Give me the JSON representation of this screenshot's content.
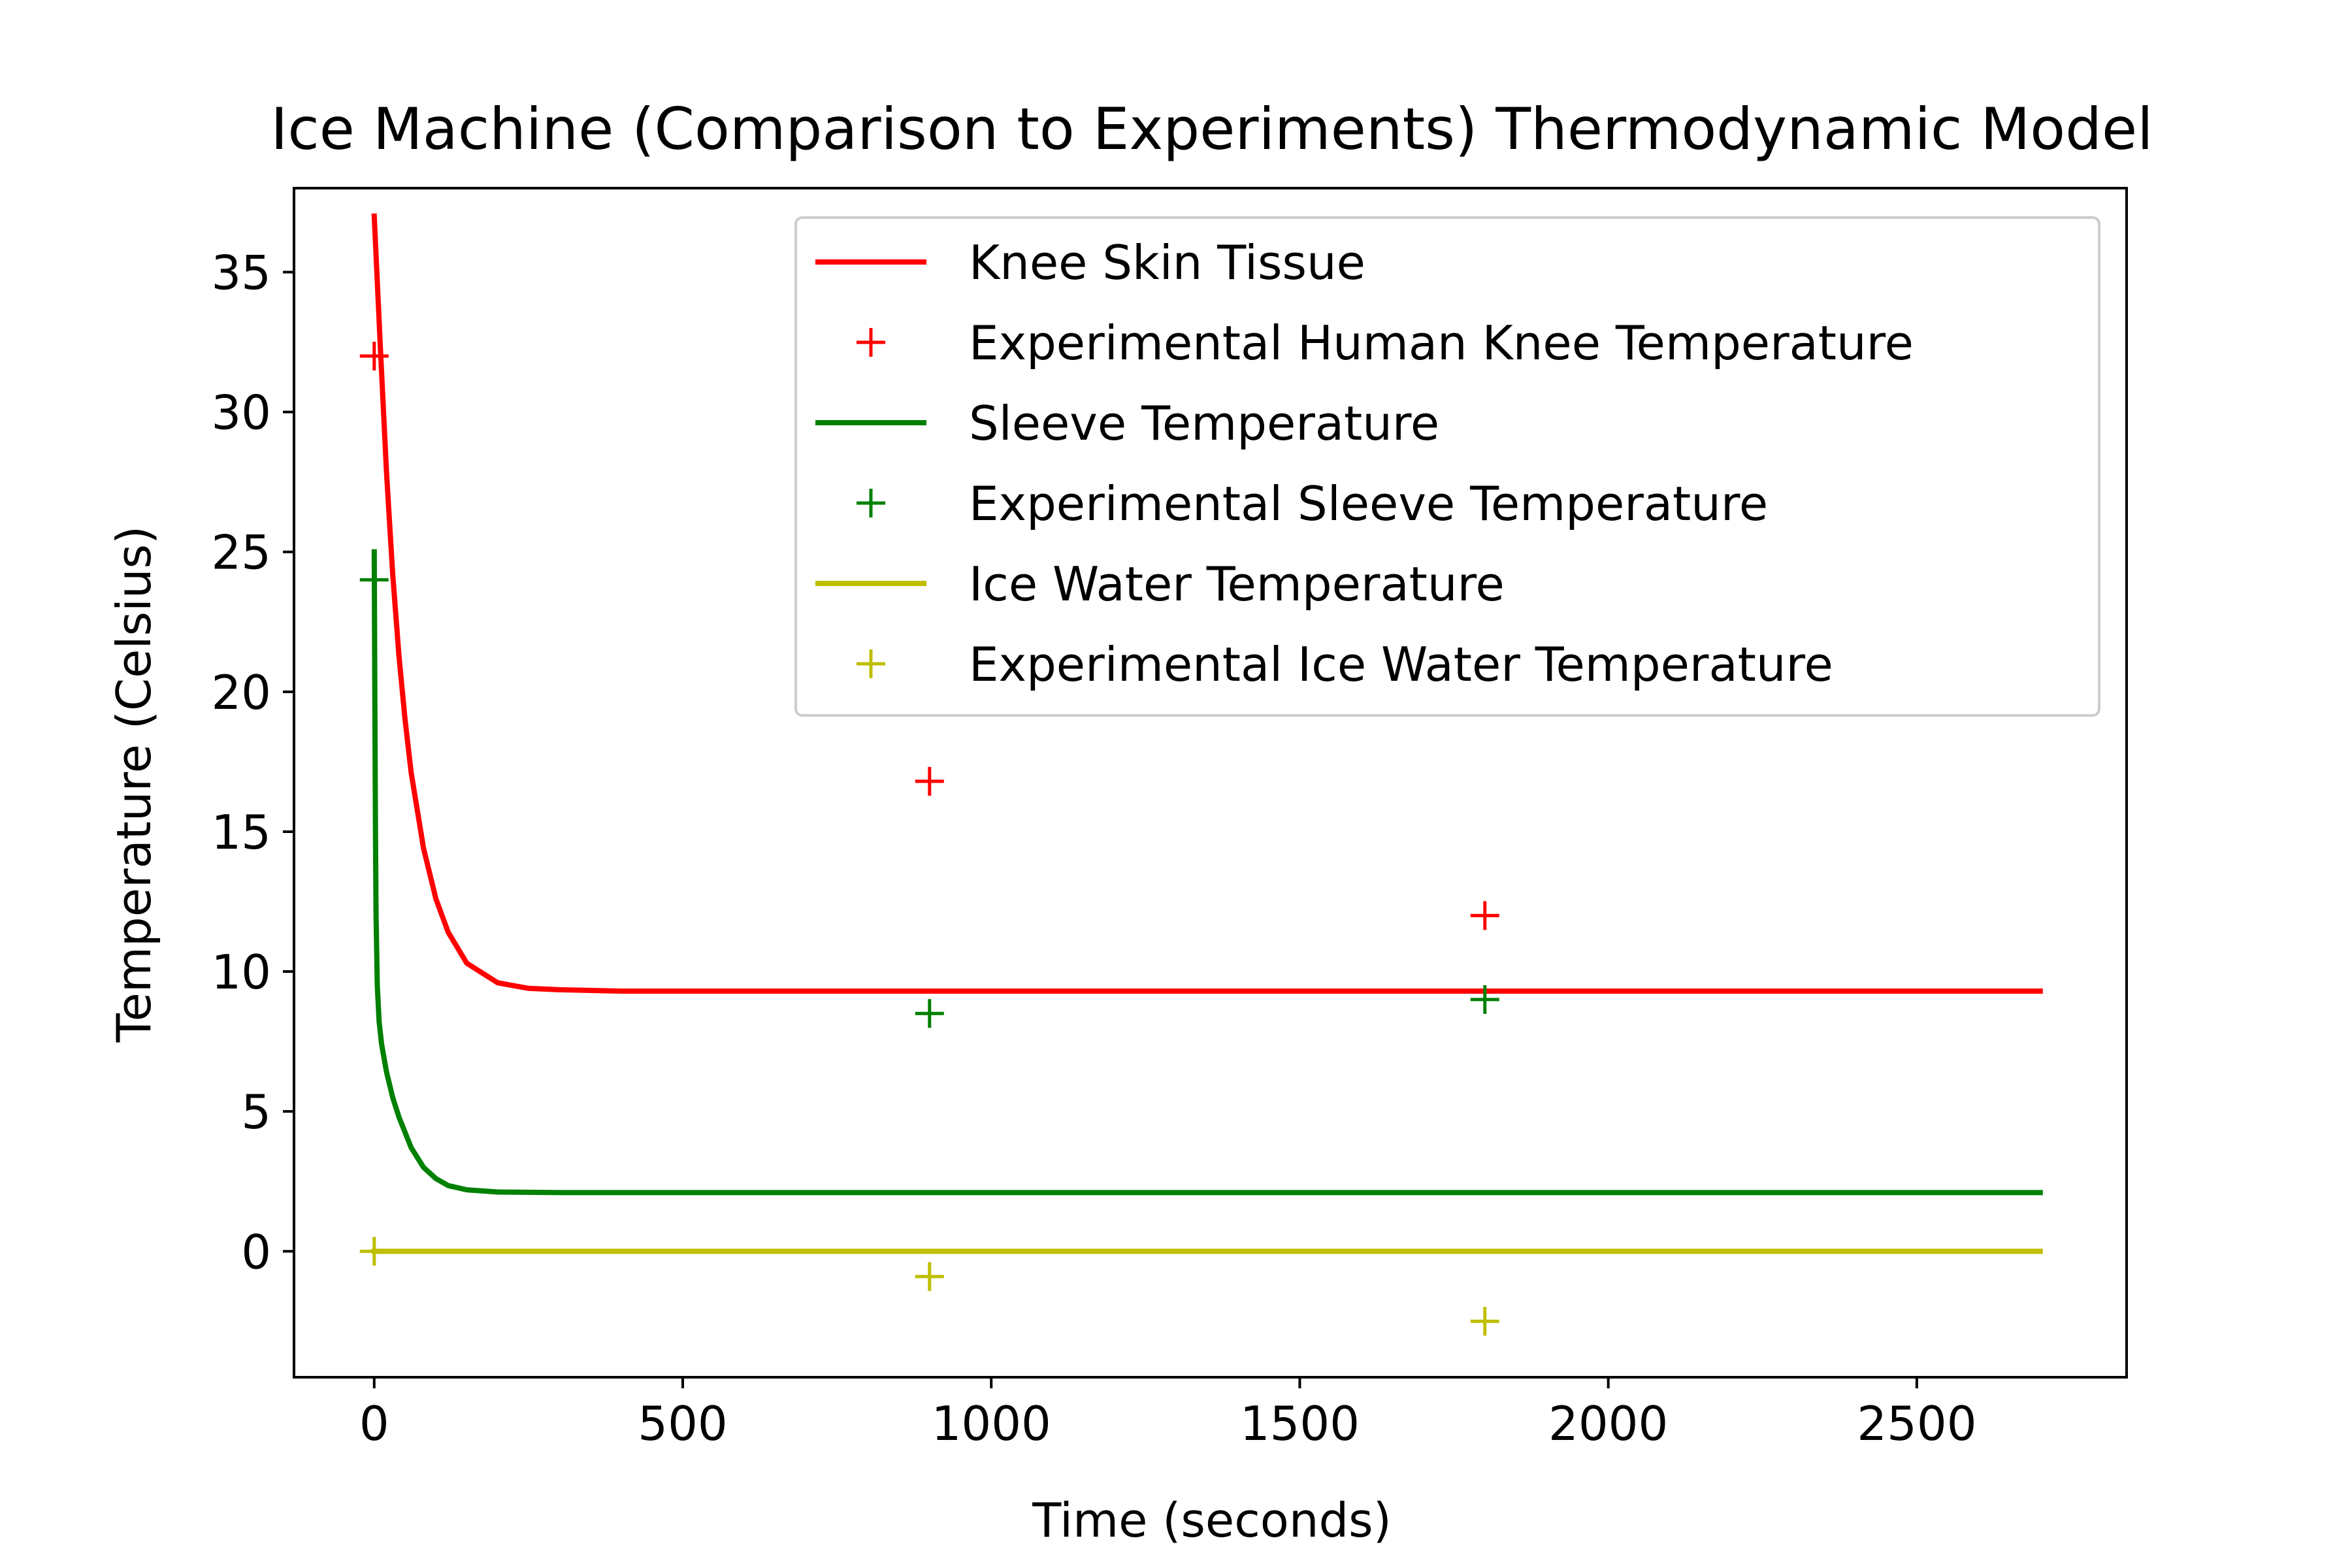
{
  "chart_data": {
    "type": "line",
    "title": "Ice Machine (Comparison to Experiments) Thermodynamic Model",
    "xlabel": "Time (seconds)",
    "ylabel": "Temperature (Celsius)",
    "xlim": [
      -130,
      2840
    ],
    "ylim": [
      -4.5,
      38
    ],
    "xticks": [
      0,
      500,
      1000,
      1500,
      2000,
      2500
    ],
    "xtick_labels": [
      "0",
      "500",
      "1000",
      "1500",
      "2000",
      "2500"
    ],
    "yticks": [
      0,
      5,
      10,
      15,
      20,
      25,
      30,
      35
    ],
    "ytick_labels": [
      "0",
      "5",
      "10",
      "15",
      "20",
      "25",
      "30",
      "35"
    ],
    "grid": false,
    "legend_position": "upper right",
    "series": [
      {
        "name": "Knee Skin Tissue",
        "kind": "line",
        "color": "#ff0000",
        "x": [
          0,
          10,
          20,
          30,
          40,
          50,
          60,
          80,
          100,
          120,
          150,
          200,
          250,
          300,
          400,
          600,
          1000,
          1500,
          2000,
          2700
        ],
        "y": [
          37.0,
          32.3,
          27.8,
          24.2,
          21.3,
          19.0,
          17.1,
          14.4,
          12.6,
          11.4,
          10.3,
          9.6,
          9.4,
          9.35,
          9.3,
          9.3,
          9.3,
          9.3,
          9.3,
          9.3
        ]
      },
      {
        "name": "Experimental Human Knee Temperature",
        "kind": "marker",
        "color": "#ff0000",
        "x": [
          0,
          900,
          1800
        ],
        "y": [
          32.0,
          16.8,
          12.0
        ]
      },
      {
        "name": "Sleeve Temperature",
        "kind": "line",
        "color": "#008000",
        "x": [
          0,
          1,
          2,
          3,
          5,
          8,
          12,
          20,
          30,
          40,
          60,
          80,
          100,
          120,
          150,
          200,
          300,
          500,
          1000,
          2000,
          2700
        ],
        "y": [
          25.0,
          20.0,
          15.0,
          12.0,
          9.5,
          8.2,
          7.4,
          6.4,
          5.5,
          4.8,
          3.7,
          3.0,
          2.6,
          2.35,
          2.2,
          2.12,
          2.1,
          2.1,
          2.1,
          2.1,
          2.1
        ]
      },
      {
        "name": "Experimental Sleeve Temperature",
        "kind": "marker",
        "color": "#008000",
        "x": [
          0,
          900,
          1800
        ],
        "y": [
          24.0,
          8.5,
          9.0
        ]
      },
      {
        "name": "Ice Water Temperature",
        "kind": "line",
        "color": "#bfbf00",
        "x": [
          0,
          2700
        ],
        "y": [
          0.0,
          0.0
        ]
      },
      {
        "name": "Experimental Ice Water Temperature",
        "kind": "marker",
        "color": "#bfbf00",
        "x": [
          0,
          900,
          1800
        ],
        "y": [
          0.0,
          -0.9,
          -2.5
        ]
      }
    ]
  }
}
